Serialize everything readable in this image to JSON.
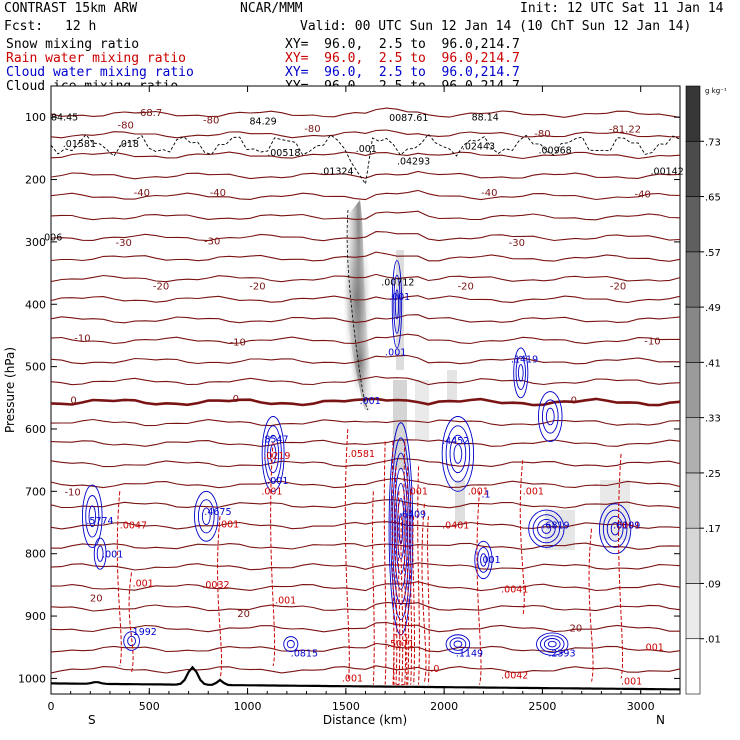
{
  "header": {
    "model": "CONTRAST 15km ARW",
    "center": "NCAR/MMM",
    "init": "Init: 12 UTC Sat 11 Jan 14",
    "fcst_label": "Fcst:",
    "fcst_value": "12 h",
    "valid": "Valid: 00 UTC Sun 12 Jan 14 (10 ChT Sun 12 Jan 14)"
  },
  "fields": [
    {
      "name": "Snow mixing ratio",
      "xy": "XY=  96.0,  2.5 to  96.0,214.7",
      "color": "#000000"
    },
    {
      "name": "Rain water mixing ratio",
      "xy": "XY=  96.0,  2.5 to  96.0,214.7",
      "color": "#cc0000"
    },
    {
      "name": "Cloud water mixing ratio",
      "xy": "XY=  96.0,  2.5 to  96.0,214.7",
      "color": "#0000cc"
    },
    {
      "name": "Cloud ice mixing ratio",
      "xy": "XY=  96.0,  2.5 to  96.0,214.7",
      "color": "#000000"
    }
  ],
  "chart_data": {
    "type": "contour",
    "xlabel": "Distance (km)",
    "ylabel": "Pressure (hPa)",
    "xlim": [
      0,
      3200
    ],
    "ylim": [
      1025,
      50
    ],
    "x_ticks": [
      0,
      500,
      1000,
      1500,
      2000,
      2500,
      3000
    ],
    "y_ticks": [
      100,
      200,
      300,
      400,
      500,
      600,
      700,
      800,
      900,
      1000
    ],
    "x_end_labels": {
      "left": "S",
      "right": "N"
    },
    "colorbar": {
      "unit": "g kg⁻¹",
      "ticks": [
        0.01,
        0.09,
        0.17,
        0.25,
        0.33,
        0.41,
        0.49,
        0.57,
        0.65,
        0.73
      ],
      "tick_labels": [
        ".01",
        ".09",
        ".17",
        ".25",
        ".33",
        ".41",
        ".49",
        ".57",
        ".65",
        ".73"
      ]
    },
    "temperature_contours": [
      {
        "label": "-68.7",
        "x": 500,
        "p": 92
      },
      {
        "label": "-80",
        "x": 380,
        "p": 112
      },
      {
        "label": "-80",
        "x": 815,
        "p": 104
      },
      {
        "label": "-80",
        "x": 1330,
        "p": 117
      },
      {
        "label": "-80",
        "x": 2500,
        "p": 125
      },
      {
        "label": "-81.22",
        "x": 2920,
        "p": 118
      },
      {
        "label": "-40",
        "x": 462,
        "p": 220
      },
      {
        "label": "-40",
        "x": 849,
        "p": 220
      },
      {
        "label": "-40",
        "x": 2230,
        "p": 220
      },
      {
        "label": "-40",
        "x": 3010,
        "p": 222
      },
      {
        "label": "-30",
        "x": 370,
        "p": 300
      },
      {
        "label": "-30",
        "x": 820,
        "p": 298
      },
      {
        "label": "-30",
        "x": 2370,
        "p": 300
      },
      {
        "label": "-20",
        "x": 560,
        "p": 370
      },
      {
        "label": "-20",
        "x": 1050,
        "p": 370
      },
      {
        "label": "-20",
        "x": 2110,
        "p": 370
      },
      {
        "label": "-20",
        "x": 2885,
        "p": 370
      },
      {
        "label": "-10",
        "x": 160,
        "p": 453
      },
      {
        "label": "-10",
        "x": 950,
        "p": 460
      },
      {
        "label": "-10",
        "x": 3060,
        "p": 458
      },
      {
        "label": "0",
        "x": 115,
        "p": 553
      },
      {
        "label": "0",
        "x": 940,
        "p": 550
      },
      {
        "label": "0",
        "x": 2660,
        "p": 553
      },
      {
        "label": "-10",
        "x": 110,
        "p": 700
      },
      {
        "label": "20",
        "x": 230,
        "p": 870
      },
      {
        "label": "20",
        "x": 980,
        "p": 895
      },
      {
        "label": "20",
        "x": 2670,
        "p": 918
      }
    ],
    "snow_maxima": [
      {
        "label": "84.45",
        "x": 0,
        "p": 105
      },
      {
        "label": ".01581",
        "x": 60,
        "p": 148
      },
      {
        "label": ".018",
        "x": 340,
        "p": 148
      },
      {
        "label": "84.29",
        "x": 1010,
        "p": 112
      },
      {
        "label": ".00518",
        "x": 1100,
        "p": 162
      },
      {
        "label": ".001",
        "x": 1550,
        "p": 156
      },
      {
        "label": ".01324",
        "x": 1370,
        "p": 192
      },
      {
        "label": "0087.61",
        "x": 1720,
        "p": 106
      },
      {
        "label": "88.14",
        "x": 2140,
        "p": 105
      },
      {
        "label": ".02443",
        "x": 2090,
        "p": 152
      },
      {
        "label": ".04293",
        "x": 1760,
        "p": 176
      },
      {
        "label": ".00968",
        "x": 2480,
        "p": 158
      },
      {
        "label": ".00142",
        "x": 3050,
        "p": 192
      },
      {
        "label": "006",
        "x": -35,
        "p": 298
      },
      {
        "label": ".00712",
        "x": 1680,
        "p": 370
      }
    ],
    "rain_maxima": [
      {
        "label": ".0219",
        "x": 1080,
        "p": 648
      },
      {
        "label": ".0581",
        "x": 1510,
        "p": 645
      },
      {
        "label": ".0047",
        "x": 350,
        "p": 760
      },
      {
        "label": ".001",
        "x": 1070,
        "p": 705
      },
      {
        "label": ".001",
        "x": 1810,
        "p": 705
      },
      {
        "label": ".001",
        "x": 2120,
        "p": 705
      },
      {
        "label": ".001",
        "x": 2400,
        "p": 705
      },
      {
        "label": ".001",
        "x": 850,
        "p": 758
      },
      {
        "label": ".001",
        "x": 415,
        "p": 853
      },
      {
        "label": ".0401",
        "x": 1990,
        "p": 760
      },
      {
        "label": ".0091",
        "x": 2860,
        "p": 760
      },
      {
        "label": ".0032",
        "x": 770,
        "p": 855
      },
      {
        "label": ".001",
        "x": 1140,
        "p": 880
      },
      {
        "label": ".0041",
        "x": 2290,
        "p": 862
      },
      {
        "label": ".5071",
        "x": 1710,
        "p": 950
      },
      {
        "label": ".0",
        "x": 1930,
        "p": 990
      },
      {
        "label": ".0042",
        "x": 2290,
        "p": 1000
      },
      {
        "label": ".001",
        "x": 1480,
        "p": 1005
      },
      {
        "label": ".001",
        "x": 2900,
        "p": 1010
      },
      {
        "label": ".001",
        "x": 3010,
        "p": 955
      }
    ],
    "cloud_water_maxima": [
      {
        "label": ".001",
        "x": 1720,
        "p": 393
      },
      {
        "label": ".001",
        "x": 1700,
        "p": 482
      },
      {
        "label": ".001",
        "x": 1570,
        "p": 560
      },
      {
        "label": ".1419",
        "x": 2340,
        "p": 493
      },
      {
        "label": ".8547",
        "x": 1070,
        "p": 622
      },
      {
        "label": ".4452",
        "x": 1990,
        "p": 624
      },
      {
        "label": ".001",
        "x": 1100,
        "p": 688
      },
      {
        "label": ".1",
        "x": 2190,
        "p": 710
      },
      {
        "label": ".5774",
        "x": 180,
        "p": 752
      },
      {
        "label": ".4675",
        "x": 780,
        "p": 738
      },
      {
        "label": ".6409",
        "x": 1770,
        "p": 742
      },
      {
        "label": ".6819",
        "x": 2500,
        "p": 760
      },
      {
        "label": ".6109",
        "x": 2860,
        "p": 760
      },
      {
        "label": ".001",
        "x": 260,
        "p": 806
      },
      {
        "label": ".001",
        "x": 2180,
        "p": 815
      },
      {
        "label": ".1992",
        "x": 400,
        "p": 930
      },
      {
        "label": ".0815",
        "x": 1220,
        "p": 965
      },
      {
        "label": ".1149",
        "x": 2060,
        "p": 965
      },
      {
        "label": ".2393",
        "x": 2530,
        "p": 965
      }
    ]
  }
}
